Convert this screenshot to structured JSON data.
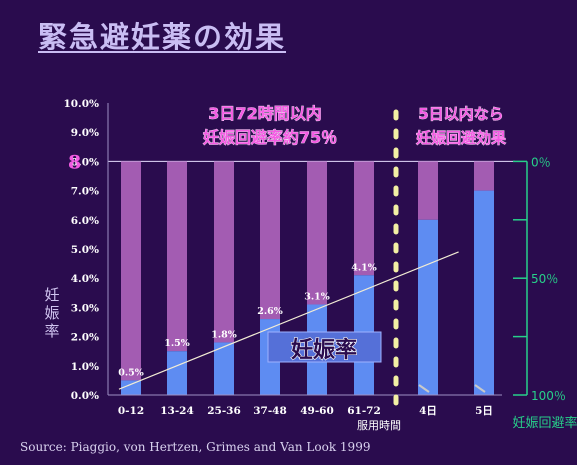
{
  "title": "緊急避妊薬の効果",
  "source": "Source: Piaggio, von Hertzen, Grimes and Van Look 1999",
  "colors": {
    "background": "#2a0c4e",
    "bar_blue": "#5e8cf2",
    "bar_purple": "#a35cb2",
    "annotation_pink": "#f35be3",
    "right_axis_green": "#27d08a",
    "dashed_line": "#f3f0a4",
    "label_box": "#5570d8"
  },
  "chart_data": {
    "type": "bar",
    "stacked_to": 8.0,
    "categories": [
      "0-12",
      "13-24",
      "25-36",
      "37-48",
      "49-60",
      "61-72",
      "4日",
      "5日"
    ],
    "extra_xlabel": "服用時間",
    "values": [
      0.5,
      1.5,
      1.8,
      2.6,
      3.1,
      4.1,
      6.0,
      7.0
    ],
    "data_labels": [
      "0.5%",
      "1.5%",
      "1.8%",
      "2.6%",
      "3.1%",
      "4.1%",
      "",
      ""
    ],
    "y_ticks": [
      "0.0%",
      "1.0%",
      "2.0%",
      "3.0%",
      "4.0%",
      "5.0%",
      "6.0%",
      "7.0%",
      "8.0%",
      "9.0%",
      "10.0%"
    ],
    "ylim": [
      0,
      10
    ],
    "ylabel": "妊娠率",
    "marker_label": "8",
    "right_axis": {
      "label": "妊娠回避率",
      "ticks": [
        "0％",
        "50％",
        "100％"
      ],
      "range": [
        0,
        100
      ]
    },
    "trend_line": {
      "from": [
        0,
        0.2
      ],
      "to": [
        6,
        4.9
      ]
    },
    "annotations": {
      "left_line1": "3日72時間以内",
      "left_line2": "妊娠回避率約75％",
      "right_line1": "5日以内なら",
      "right_line2": "妊娠回避効果",
      "box_label": "妊娠率"
    }
  }
}
